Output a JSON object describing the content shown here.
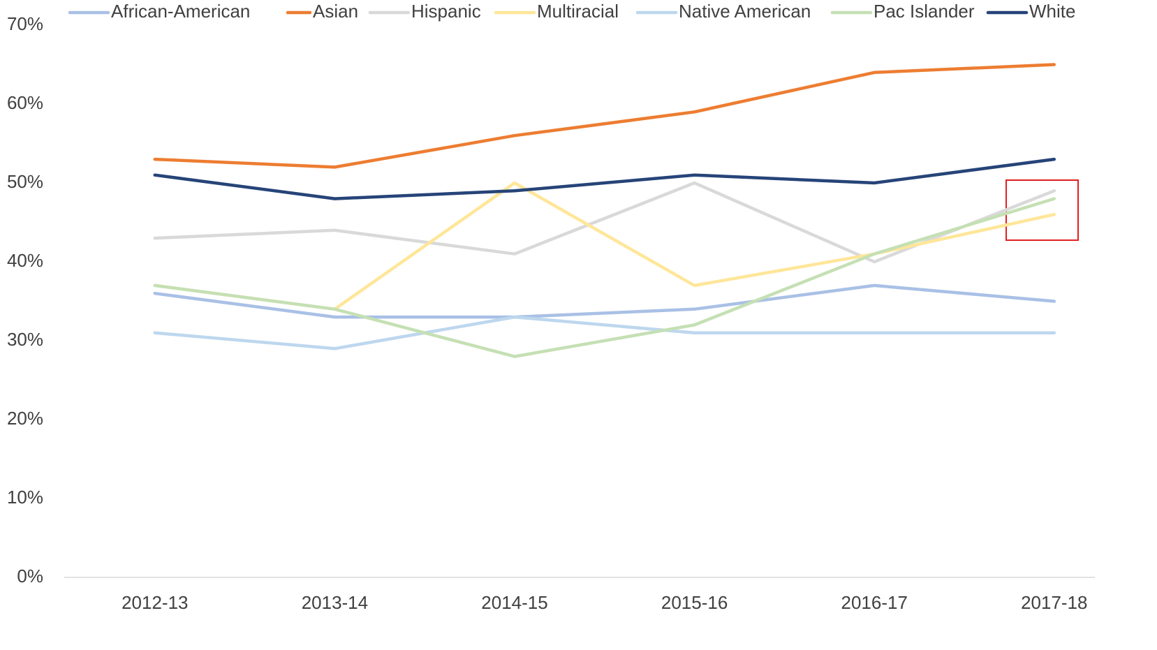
{
  "chart_data": {
    "type": "line",
    "categories": [
      "2012-13",
      "2013-14",
      "2014-15",
      "2015-16",
      "2016-17",
      "2017-18"
    ],
    "series": [
      {
        "name": "African-American",
        "color": "#a9c0e6",
        "values": [
          36,
          33,
          33,
          34,
          37,
          35
        ]
      },
      {
        "name": "Asian",
        "color": "#ed7d31",
        "values": [
          53,
          52,
          56,
          59,
          64,
          65
        ]
      },
      {
        "name": "Hispanic",
        "color": "#d9d9d9",
        "values": [
          43,
          44,
          41,
          50,
          40,
          49
        ]
      },
      {
        "name": "Multiracial",
        "color": "#ffe699",
        "values": [
          37,
          34,
          50,
          37,
          41,
          46
        ]
      },
      {
        "name": "Native American",
        "color": "#bdd7ee",
        "values": [
          31,
          29,
          33,
          31,
          31,
          31
        ]
      },
      {
        "name": "Pac Islander",
        "color": "#c5e0b4",
        "values": [
          37,
          34,
          28,
          32,
          41,
          48
        ]
      },
      {
        "name": "White",
        "color": "#264478",
        "values": [
          51,
          48,
          49,
          51,
          50,
          53
        ]
      }
    ],
    "ylim": [
      0,
      70
    ],
    "yticks": [
      {
        "value": 0,
        "label": "0%"
      },
      {
        "value": 10,
        "label": "10%"
      },
      {
        "value": 20,
        "label": "20%"
      },
      {
        "value": 30,
        "label": "30%"
      },
      {
        "value": 40,
        "label": "40%"
      },
      {
        "value": 50,
        "label": "50%"
      },
      {
        "value": 60,
        "label": "60%"
      },
      {
        "value": 70,
        "label": "70%"
      }
    ],
    "grid": false,
    "legend": "top"
  }
}
